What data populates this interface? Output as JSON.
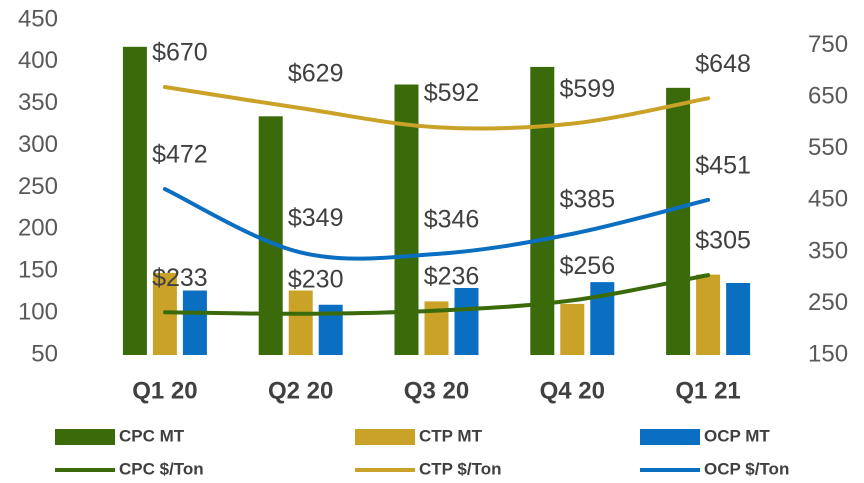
{
  "chart_data": {
    "type": "combo",
    "categories": [
      "Q1 20",
      "Q2 20",
      "Q3 20",
      "Q4 20",
      "Q1 21"
    ],
    "ylim": [
      50,
      450
    ],
    "yticks": [
      50,
      100,
      150,
      200,
      250,
      300,
      350,
      400,
      450
    ],
    "y2lim": [
      150,
      800
    ],
    "y2ticks": [
      150,
      250,
      350,
      450,
      550,
      650,
      750
    ],
    "series": [
      {
        "name": "CPC MT",
        "type": "bar",
        "color": "#3b6a0b",
        "values": [
          418,
          335,
          373,
          394,
          369
        ]
      },
      {
        "name": "CTP MT",
        "type": "bar",
        "color": "#c9a227",
        "values": [
          148,
          127,
          114,
          111,
          146
        ]
      },
      {
        "name": "OCP MT",
        "type": "bar",
        "color": "#0b6fc1",
        "values": [
          127,
          110,
          130,
          137,
          136
        ]
      },
      {
        "name": "CPC $/Ton",
        "type": "line",
        "axis": "y2",
        "color": "#3b6a0b",
        "values": [
          233,
          230,
          236,
          256,
          305
        ],
        "value_labels": [
          "$233",
          "$230",
          "$236",
          "$256",
          "$305"
        ]
      },
      {
        "name": "CTP $/Ton",
        "type": "line",
        "axis": "y2",
        "color": "#c9a227",
        "values": [
          670,
          629,
          592,
          599,
          648
        ],
        "value_labels": [
          "$670",
          "$629",
          "$592",
          "$599",
          "$648"
        ]
      },
      {
        "name": "OCP $/Ton",
        "type": "line",
        "axis": "y2",
        "color": "#0b6fc1",
        "values": [
          472,
          349,
          346,
          385,
          451
        ],
        "value_labels": [
          "$472",
          "$349",
          "$346",
          "$385",
          "$451"
        ]
      }
    ]
  }
}
